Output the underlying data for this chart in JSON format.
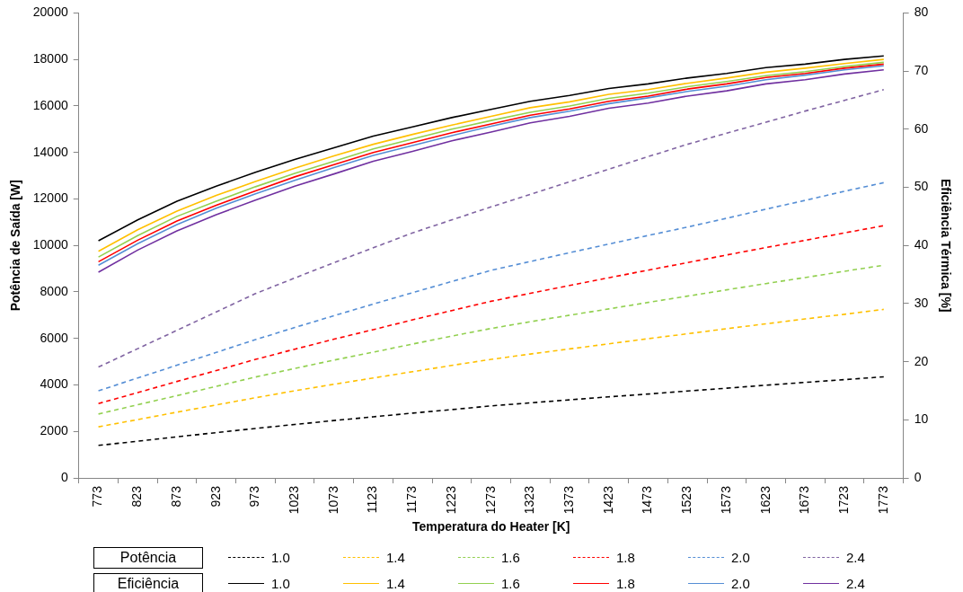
{
  "chart_data": {
    "type": "line",
    "xlabel": "Temperatura do Heater [K]",
    "ylabel": "Potência de Saída [W]",
    "y2label": "Eficiência Térmica [%]",
    "categories": [
      "773",
      "823",
      "873",
      "923",
      "973",
      "1023",
      "1073",
      "1123",
      "1173",
      "1223",
      "1273",
      "1323",
      "1373",
      "1423",
      "1473",
      "1523",
      "1573",
      "1623",
      "1673",
      "1723",
      "1773"
    ],
    "ylim": [
      0,
      20000
    ],
    "yticks": [
      0,
      2000,
      4000,
      6000,
      8000,
      10000,
      12000,
      14000,
      16000,
      18000,
      20000
    ],
    "y2lim": [
      0,
      80
    ],
    "y2ticks": [
      0,
      10,
      20,
      30,
      40,
      50,
      60,
      70,
      80
    ],
    "grid": false,
    "legend": "bottom",
    "annotations": [
      "Potência",
      "Eficiência"
    ],
    "series": [
      {
        "name": "1.0",
        "color": "#000000",
        "line_style": "dashed",
        "axis": "y",
        "values": [
          1400,
          1580,
          1770,
          1950,
          2130,
          2300,
          2470,
          2630,
          2790,
          2940,
          3100,
          3230,
          3360,
          3490,
          3610,
          3740,
          3860,
          3990,
          4110,
          4230,
          4350
        ]
      },
      {
        "name": "1.4",
        "color": "#ffc000",
        "line_style": "dashed",
        "axis": "y",
        "values": [
          2200,
          2510,
          2830,
          3140,
          3450,
          3750,
          4030,
          4300,
          4570,
          4840,
          5100,
          5330,
          5550,
          5770,
          5990,
          6200,
          6420,
          6630,
          6840,
          7040,
          7250
        ]
      },
      {
        "name": "1.6",
        "color": "#92d050",
        "line_style": "dashed",
        "axis": "y",
        "values": [
          2750,
          3150,
          3540,
          3940,
          4340,
          4710,
          5070,
          5410,
          5760,
          6100,
          6430,
          6720,
          7000,
          7270,
          7550,
          7820,
          8090,
          8360,
          8620,
          8890,
          9150
        ]
      },
      {
        "name": "1.8",
        "color": "#ff0000",
        "line_style": "dashed",
        "axis": "y",
        "values": [
          3200,
          3670,
          4150,
          4620,
          5100,
          5540,
          5970,
          6380,
          6800,
          7200,
          7600,
          7940,
          8280,
          8610,
          8940,
          9260,
          9590,
          9910,
          10220,
          10540,
          10850
        ]
      },
      {
        "name": "2.0",
        "color": "#558ed5",
        "line_style": "dashed",
        "axis": "y",
        "values": [
          3750,
          4300,
          4850,
          5400,
          5950,
          6470,
          6980,
          7480,
          7970,
          8450,
          8930,
          9310,
          9690,
          10060,
          10430,
          10790,
          11170,
          11560,
          11940,
          12330,
          12700
        ]
      },
      {
        "name": "2.4",
        "color": "#8064a2",
        "line_style": "dashed",
        "axis": "y",
        "values": [
          4770,
          5560,
          6350,
          7140,
          7930,
          8600,
          9260,
          9900,
          10540,
          11100,
          11660,
          12200,
          12740,
          13280,
          13820,
          14350,
          14830,
          15300,
          15780,
          16240,
          16700
        ]
      },
      {
        "name": "1.0",
        "color": "#000000",
        "line_style": "solid",
        "axis": "y2",
        "values": [
          40.8,
          44.4,
          47.6,
          50.2,
          52.6,
          54.8,
          56.8,
          58.8,
          60.4,
          62,
          63.4,
          64.8,
          65.8,
          67,
          67.8,
          68.8,
          69.6,
          70.6,
          71.2,
          72,
          72.6
        ]
      },
      {
        "name": "1.4",
        "color": "#ffc000",
        "line_style": "solid",
        "axis": "y2",
        "values": [
          39.0,
          42.7,
          45.9,
          48.6,
          51.0,
          53.3,
          55.4,
          57.4,
          59.1,
          60.7,
          62.2,
          63.7,
          64.7,
          66.0,
          66.8,
          67.9,
          68.8,
          69.8,
          70.5,
          71.3,
          72.0
        ]
      },
      {
        "name": "1.6",
        "color": "#92d050",
        "line_style": "solid",
        "axis": "y2",
        "values": [
          38.0,
          41.7,
          45.0,
          47.6,
          50.1,
          52.4,
          54.5,
          56.6,
          58.3,
          60.0,
          61.5,
          62.9,
          64.0,
          65.3,
          66.2,
          67.3,
          68.2,
          69.2,
          69.9,
          70.8,
          71.5
        ]
      },
      {
        "name": "1.8",
        "color": "#ff0000",
        "line_style": "solid",
        "axis": "y2",
        "values": [
          37.2,
          40.9,
          44.2,
          46.9,
          49.4,
          51.8,
          53.9,
          56.0,
          57.7,
          59.4,
          60.9,
          62.4,
          63.5,
          64.8,
          65.7,
          66.9,
          67.8,
          68.9,
          69.6,
          70.5,
          71.2
        ]
      },
      {
        "name": "2.0",
        "color": "#558ed5",
        "line_style": "solid",
        "axis": "y2",
        "values": [
          36.6,
          40.3,
          43.6,
          46.4,
          48.9,
          51.2,
          53.4,
          55.5,
          57.2,
          58.9,
          60.5,
          62.0,
          63.1,
          64.4,
          65.4,
          66.5,
          67.4,
          68.5,
          69.3,
          70.2,
          70.9
        ]
      },
      {
        "name": "2.4",
        "color": "#7030a0",
        "line_style": "solid",
        "axis": "y2",
        "values": [
          35.4,
          39.2,
          42.5,
          45.3,
          47.8,
          50.2,
          52.3,
          54.5,
          56.2,
          58.0,
          59.5,
          61.1,
          62.2,
          63.6,
          64.5,
          65.7,
          66.6,
          67.8,
          68.5,
          69.5,
          70.2
        ]
      }
    ]
  }
}
